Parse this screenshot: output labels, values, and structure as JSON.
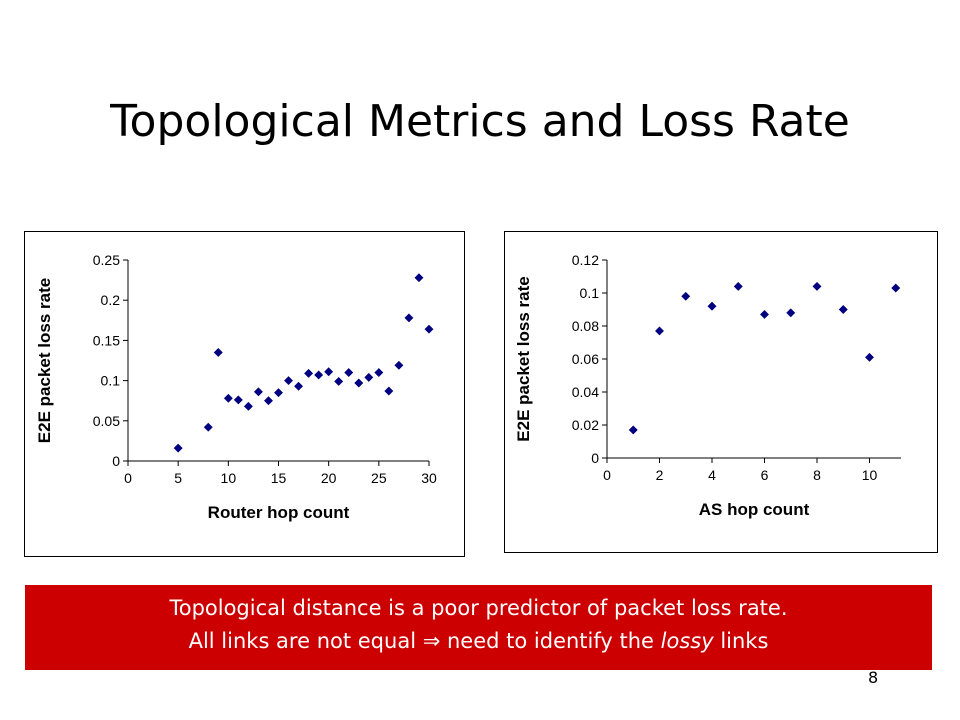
{
  "slide": {
    "title": "Topological Metrics and Loss Rate",
    "page_number": "8"
  },
  "callout": {
    "line1": "Topological distance is a poor predictor of packet loss rate.",
    "line2_prefix": "All links are not equal ",
    "line2_arrow": "⇒",
    "line2_middle": " need to identify the ",
    "line2_emphasis": "lossy",
    "line2_suffix": " links",
    "background": "#cc0000"
  },
  "chart_data": [
    {
      "type": "scatter",
      "xlabel": "Router hop count",
      "ylabel": "E2E packet loss rate",
      "xlim": [
        0,
        30
      ],
      "ylim": [
        0,
        0.25
      ],
      "xticks": [
        0,
        5,
        10,
        15,
        20,
        25,
        30
      ],
      "yticks": [
        0,
        0.05,
        0.1,
        0.15,
        0.2,
        0.25
      ],
      "grid": false,
      "marker": "diamond",
      "marker_color": "#000080",
      "points": [
        [
          5,
          0.016
        ],
        [
          8,
          0.042
        ],
        [
          9,
          0.135
        ],
        [
          10,
          0.078
        ],
        [
          11,
          0.076
        ],
        [
          12,
          0.068
        ],
        [
          13,
          0.086
        ],
        [
          14,
          0.075
        ],
        [
          15,
          0.085
        ],
        [
          16,
          0.1
        ],
        [
          17,
          0.093
        ],
        [
          18,
          0.109
        ],
        [
          19,
          0.107
        ],
        [
          20,
          0.111
        ],
        [
          21,
          0.099
        ],
        [
          22,
          0.11
        ],
        [
          23,
          0.097
        ],
        [
          24,
          0.104
        ],
        [
          25,
          0.11
        ],
        [
          26,
          0.087
        ],
        [
          27,
          0.119
        ],
        [
          28,
          0.178
        ],
        [
          29,
          0.228
        ],
        [
          30,
          0.164
        ]
      ]
    },
    {
      "type": "scatter",
      "xlabel": "AS hop count",
      "ylabel": "E2E packet loss rate",
      "xlim": [
        0,
        11.2
      ],
      "ylim": [
        0,
        0.12
      ],
      "xticks": [
        0,
        2,
        4,
        6,
        8,
        10
      ],
      "yticks": [
        0,
        0.02,
        0.04,
        0.06,
        0.08,
        0.1,
        0.12
      ],
      "grid": false,
      "marker": "diamond",
      "marker_color": "#000080",
      "points": [
        [
          1,
          0.017
        ],
        [
          2,
          0.077
        ],
        [
          3,
          0.098
        ],
        [
          4,
          0.092
        ],
        [
          5,
          0.104
        ],
        [
          6,
          0.087
        ],
        [
          7,
          0.088
        ],
        [
          8,
          0.104
        ],
        [
          9,
          0.09
        ],
        [
          10,
          0.061
        ],
        [
          11,
          0.103
        ]
      ]
    }
  ]
}
